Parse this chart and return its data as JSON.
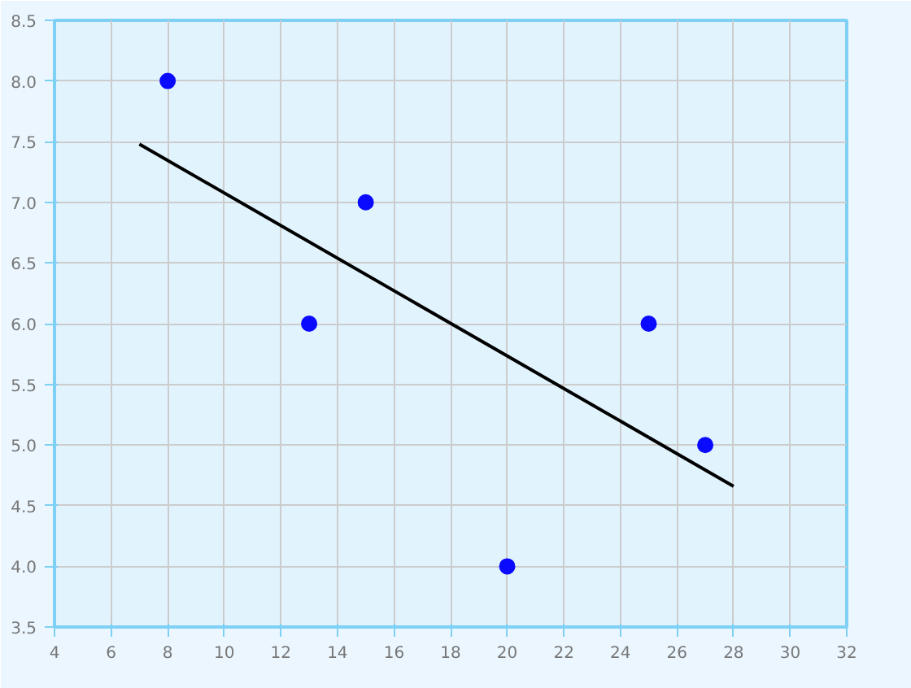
{
  "chart_data": {
    "type": "scatter",
    "xlim": [
      4,
      32
    ],
    "ylim": [
      3.5,
      8.5
    ],
    "xticks": [
      4,
      6,
      8,
      10,
      12,
      14,
      16,
      18,
      20,
      22,
      24,
      26,
      28,
      30,
      32
    ],
    "yticks": [
      {
        "value": 3.5,
        "label": "3.5"
      },
      {
        "value": 4.0,
        "label": "4.0"
      },
      {
        "value": 4.5,
        "label": "4.5"
      },
      {
        "value": 5.0,
        "label": "5.0"
      },
      {
        "value": 5.5,
        "label": "5.5"
      },
      {
        "value": 6.0,
        "label": "6.0"
      },
      {
        "value": 6.5,
        "label": "6.5"
      },
      {
        "value": 7.0,
        "label": "7.0"
      },
      {
        "value": 7.5,
        "label": "7.5"
      },
      {
        "value": 8.0,
        "label": "8.0"
      },
      {
        "value": 8.5,
        "label": "8.5"
      }
    ],
    "grid": true,
    "marker": "circle",
    "series": [
      {
        "color": "#0a0aff",
        "x": [
          8,
          13,
          15,
          20,
          25,
          27
        ],
        "values": [
          8.0,
          6.0,
          7.0,
          4.0,
          6.0,
          5.0
        ]
      },
      {
        "type": "line",
        "color": "#000000",
        "x": [
          7,
          28
        ],
        "values": [
          7.48,
          4.66
        ],
        "marker": "none",
        "line_style": "solid"
      }
    ]
  }
}
